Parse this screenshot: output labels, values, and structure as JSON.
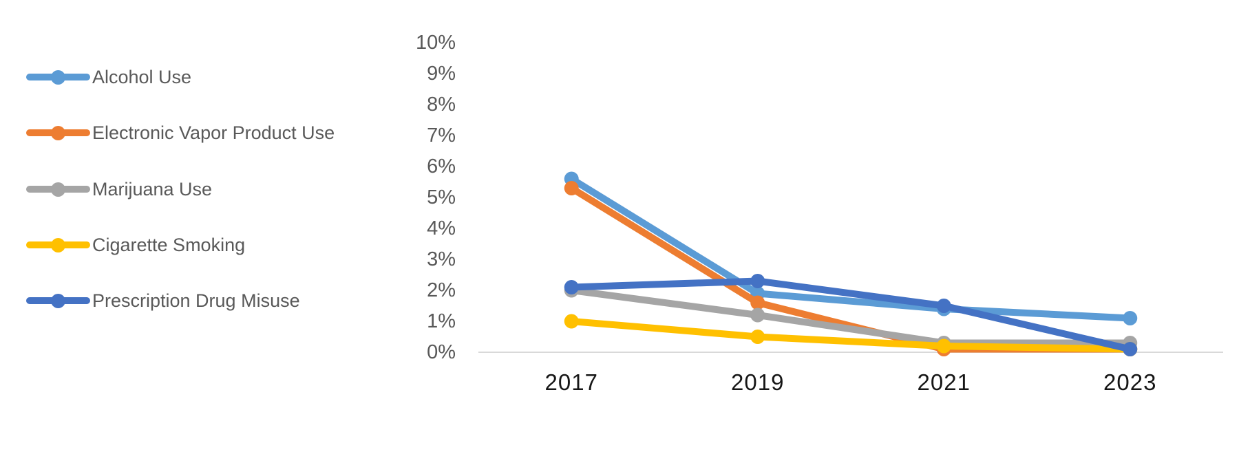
{
  "chart_data": {
    "type": "line",
    "categories": [
      "2017",
      "2019",
      "2021",
      "2023"
    ],
    "series": [
      {
        "name": "Alcohol Use",
        "color": "#5B9BD5",
        "values": [
          5.6,
          1.9,
          1.4,
          1.1
        ]
      },
      {
        "name": "Electronic Vapor Product Use",
        "color": "#ED7D31",
        "values": [
          5.3,
          1.6,
          0.1,
          0.1
        ]
      },
      {
        "name": "Marijuana Use",
        "color": "#A5A5A5",
        "values": [
          2.0,
          1.2,
          0.3,
          0.3
        ]
      },
      {
        "name": "Cigarette Smoking",
        "color": "#FFC000",
        "values": [
          1.0,
          0.5,
          0.2,
          0.1
        ]
      },
      {
        "name": "Prescription Drug Misuse",
        "color": "#4472C4",
        "values": [
          2.1,
          2.3,
          1.5,
          0.1
        ]
      }
    ],
    "title": "",
    "xlabel": "",
    "ylabel": "",
    "ylim": [
      0,
      10
    ],
    "ytick_labels": [
      "10%",
      "9%",
      "8%",
      "7%",
      "6%",
      "5%",
      "4%",
      "3%",
      "2%",
      "1%",
      "0%"
    ],
    "grid": false,
    "legend_position": "left",
    "axis_line_color": "#D9D9D9",
    "ytick_color": "#595959",
    "xtick_color": "#161616",
    "legend_text_color": "#595959"
  }
}
